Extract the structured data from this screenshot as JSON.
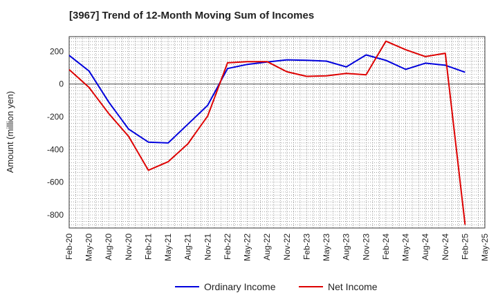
{
  "chart_data": {
    "type": "line",
    "title": "[3967]  Trend of 12-Month Moving Sum of Incomes",
    "xlabel": "",
    "ylabel": "Amount (million yen)",
    "ylim": [
      -880,
      290
    ],
    "yticks": [
      200,
      0,
      -200,
      -400,
      -600,
      -800
    ],
    "grid": true,
    "legend_position": "bottom",
    "categories": [
      "Feb-20",
      "Mar-20",
      "Apr-20",
      "May-20",
      "Jun-20",
      "Jul-20",
      "Aug-20",
      "Sep-20",
      "Oct-20",
      "Nov-20",
      "Dec-20",
      "Jan-21",
      "Feb-21",
      "Mar-21",
      "Apr-21",
      "May-21",
      "Jun-21",
      "Jul-21",
      "Aug-21",
      "Sep-21",
      "Oct-21",
      "Nov-21",
      "Dec-21",
      "Jan-22",
      "Feb-22",
      "Mar-22",
      "Apr-22",
      "May-22",
      "Jun-22",
      "Jul-22",
      "Aug-22",
      "Sep-22",
      "Oct-22",
      "Nov-22",
      "Dec-22",
      "Jan-23",
      "Feb-23",
      "Mar-23",
      "Apr-23",
      "May-23",
      "Jun-23",
      "Jul-23",
      "Aug-23",
      "Sep-23",
      "Oct-23",
      "Nov-23",
      "Dec-23",
      "Jan-24",
      "Feb-24",
      "Mar-24",
      "Apr-24",
      "May-24",
      "Jun-24",
      "Jul-24",
      "Aug-24",
      "Sep-24",
      "Oct-24",
      "Nov-24",
      "Dec-24",
      "Jan-25",
      "Feb-25",
      "Mar-25",
      "Apr-25",
      "May-25"
    ],
    "x_tick_labels": [
      "Feb-20",
      "May-20",
      "Aug-20",
      "Nov-20",
      "Feb-21",
      "May-21",
      "Aug-21",
      "Nov-21",
      "Feb-22",
      "May-22",
      "Aug-22",
      "Nov-22",
      "Feb-23",
      "May-23",
      "Aug-23",
      "Nov-23",
      "Feb-24",
      "May-24",
      "Aug-24",
      "Nov-24",
      "Feb-25",
      "May-25"
    ],
    "series": [
      {
        "name": "Ordinary Income",
        "color": "#0000dd",
        "points": [
          {
            "x": "Feb-20",
            "y": 175
          },
          {
            "x": "May-20",
            "y": 80
          },
          {
            "x": "Aug-20",
            "y": -110
          },
          {
            "x": "Nov-20",
            "y": -275
          },
          {
            "x": "Feb-21",
            "y": -355
          },
          {
            "x": "May-21",
            "y": -360
          },
          {
            "x": "Aug-21",
            "y": -245
          },
          {
            "x": "Nov-21",
            "y": -130
          },
          {
            "x": "Feb-22",
            "y": 95
          },
          {
            "x": "May-22",
            "y": 120
          },
          {
            "x": "Aug-22",
            "y": 135
          },
          {
            "x": "Nov-22",
            "y": 148
          },
          {
            "x": "Feb-23",
            "y": 145
          },
          {
            "x": "May-23",
            "y": 140
          },
          {
            "x": "Aug-23",
            "y": 105
          },
          {
            "x": "Nov-23",
            "y": 178
          },
          {
            "x": "Feb-24",
            "y": 145
          },
          {
            "x": "May-24",
            "y": 90
          },
          {
            "x": "Aug-24",
            "y": 128
          },
          {
            "x": "Nov-24",
            "y": 115
          },
          {
            "x": "Feb-25",
            "y": 72
          }
        ]
      },
      {
        "name": "Net Income",
        "color": "#dd0000",
        "points": [
          {
            "x": "Feb-20",
            "y": 88
          },
          {
            "x": "May-20",
            "y": -20
          },
          {
            "x": "Aug-20",
            "y": -180
          },
          {
            "x": "Nov-20",
            "y": -320
          },
          {
            "x": "Feb-21",
            "y": -527
          },
          {
            "x": "May-21",
            "y": -475
          },
          {
            "x": "Aug-21",
            "y": -365
          },
          {
            "x": "Nov-21",
            "y": -195
          },
          {
            "x": "Feb-22",
            "y": 130
          },
          {
            "x": "May-22",
            "y": 137
          },
          {
            "x": "Aug-22",
            "y": 137
          },
          {
            "x": "Nov-22",
            "y": 75
          },
          {
            "x": "Feb-23",
            "y": 47
          },
          {
            "x": "May-23",
            "y": 50
          },
          {
            "x": "Aug-23",
            "y": 65
          },
          {
            "x": "Nov-23",
            "y": 57
          },
          {
            "x": "Feb-24",
            "y": 262
          },
          {
            "x": "May-24",
            "y": 210
          },
          {
            "x": "Aug-24",
            "y": 168
          },
          {
            "x": "Nov-24",
            "y": 188
          },
          {
            "x": "Feb-25",
            "y": -860
          }
        ]
      }
    ]
  }
}
